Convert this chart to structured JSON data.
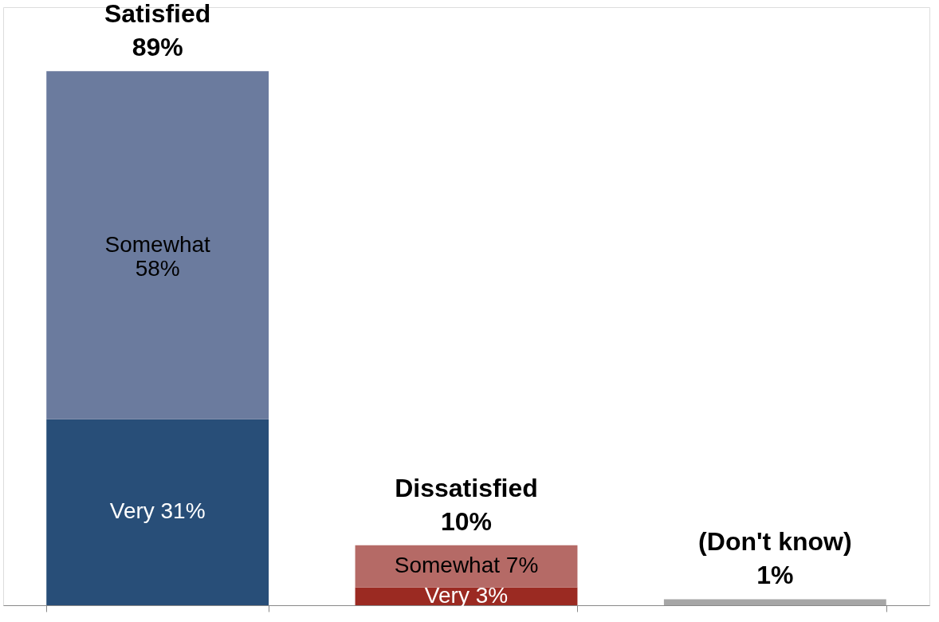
{
  "chart_data": {
    "type": "bar",
    "stacked": true,
    "categories": [
      "Satisfied",
      "Dissatisfied",
      "(Don't know)"
    ],
    "totals": [
      "89%",
      "10%",
      "1%"
    ],
    "tick_labels": false,
    "grid": false,
    "series": [
      {
        "colors": [
          "#284e78",
          "#9b2a22",
          "#a6a6a6"
        ],
        "values": [
          31,
          3,
          1
        ],
        "value_labels": [
          "Very 31%",
          "Very 3%",
          null
        ]
      },
      {
        "colors": [
          "#6b7b9e",
          "#b56a66",
          null
        ],
        "values": [
          58,
          7,
          null
        ],
        "value_labels": [
          "Somewhat\n58%",
          "Somewhat 7%",
          null
        ]
      }
    ]
  }
}
